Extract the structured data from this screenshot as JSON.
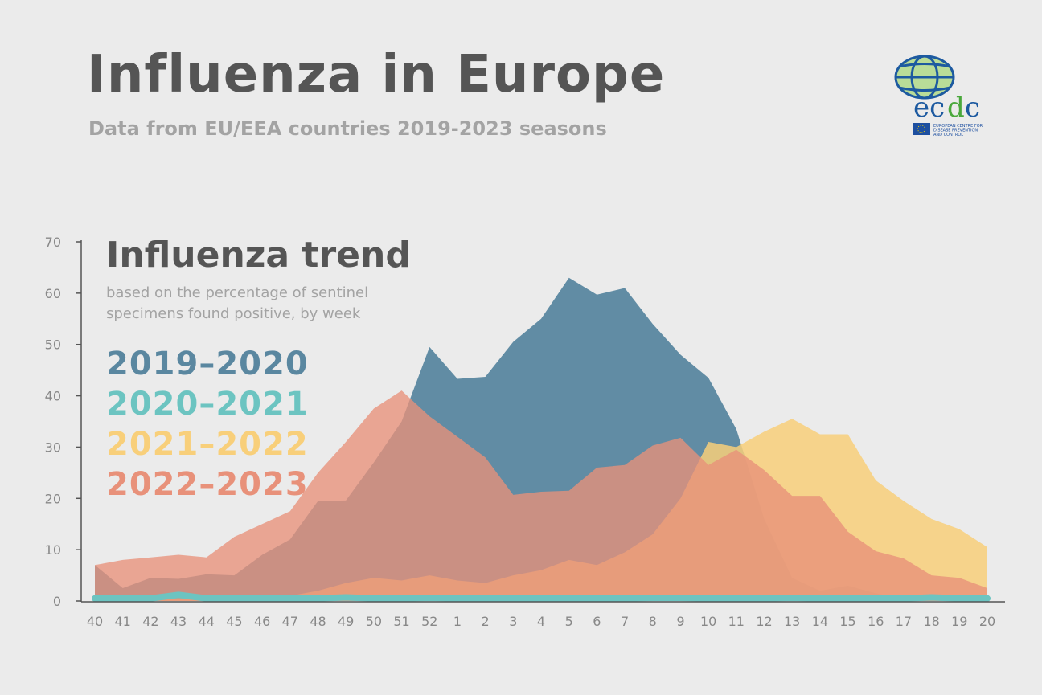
{
  "header": {
    "title": "Influenza in Europe",
    "subtitle": "Data from EU/EEA countries 2019-2023 seasons"
  },
  "logo": {
    "wordmark": "ecdc",
    "org_name": "EUROPEAN CENTRE FOR DISEASE PREVENTION AND CONTROL"
  },
  "chart_data": {
    "type": "area",
    "title": "Influenza trend",
    "subtitle": "based on the percentage of sentinel specimens found positive, by week",
    "xlabel": "",
    "ylabel": "",
    "ylim": [
      0,
      70
    ],
    "yticks": [
      0,
      10,
      20,
      30,
      40,
      50,
      60,
      70
    ],
    "grid": false,
    "legend_position": "top-left",
    "categories": [
      "40",
      "41",
      "42",
      "43",
      "44",
      "45",
      "46",
      "47",
      "48",
      "49",
      "50",
      "51",
      "52",
      "1",
      "2",
      "3",
      "4",
      "5",
      "6",
      "7",
      "8",
      "9",
      "10",
      "11",
      "12",
      "13",
      "14",
      "15",
      "16",
      "17",
      "18",
      "19",
      "20"
    ],
    "series": [
      {
        "name": "2019–2020",
        "color": "#5a87a0",
        "values": [
          7,
          2.5,
          4.5,
          4.3,
          5.2,
          5,
          9,
          12,
          19.5,
          19.6,
          27,
          35,
          49.5,
          43.3,
          43.7,
          50.5,
          55,
          63,
          59.7,
          61,
          54,
          48,
          43.5,
          33.5,
          16,
          4.5,
          2,
          3,
          1.5,
          0.5,
          0.3,
          0.2,
          0.1
        ]
      },
      {
        "name": "2020–2021",
        "color": "#6cc4c1",
        "values": [
          0.5,
          0.5,
          0.5,
          1.2,
          0.5,
          0.5,
          0.5,
          0.5,
          0.5,
          0.7,
          0.5,
          0.5,
          0.6,
          0.5,
          0.5,
          0.5,
          0.5,
          0.5,
          0.5,
          0.5,
          0.6,
          0.6,
          0.5,
          0.5,
          0.5,
          0.6,
          0.5,
          0.5,
          0.5,
          0.5,
          0.7,
          0.5,
          0.5
        ]
      },
      {
        "name": "2021–2022",
        "color": "#f8cf7a",
        "values": [
          0.3,
          0.3,
          0.4,
          0.5,
          0.5,
          0.6,
          0.9,
          1,
          2,
          3.5,
          4.5,
          4,
          5,
          4,
          3.5,
          5,
          6,
          8,
          7,
          9.5,
          13,
          20,
          31,
          30,
          33,
          35.5,
          32.5,
          32.5,
          23.5,
          19.5,
          16,
          14,
          10.5
        ]
      },
      {
        "name": "2022–2023",
        "color": "#e8917a",
        "values": [
          7,
          8,
          8.5,
          9,
          8.5,
          12.5,
          15,
          17.5,
          25,
          31,
          37.5,
          41,
          36,
          32,
          28,
          20.7,
          21.3,
          21.5,
          26,
          26.5,
          30.3,
          31.8,
          26.5,
          29.5,
          25.5,
          20.5,
          20.5,
          13.5,
          9.7,
          8.3,
          5,
          4.5,
          2.5
        ]
      }
    ]
  }
}
